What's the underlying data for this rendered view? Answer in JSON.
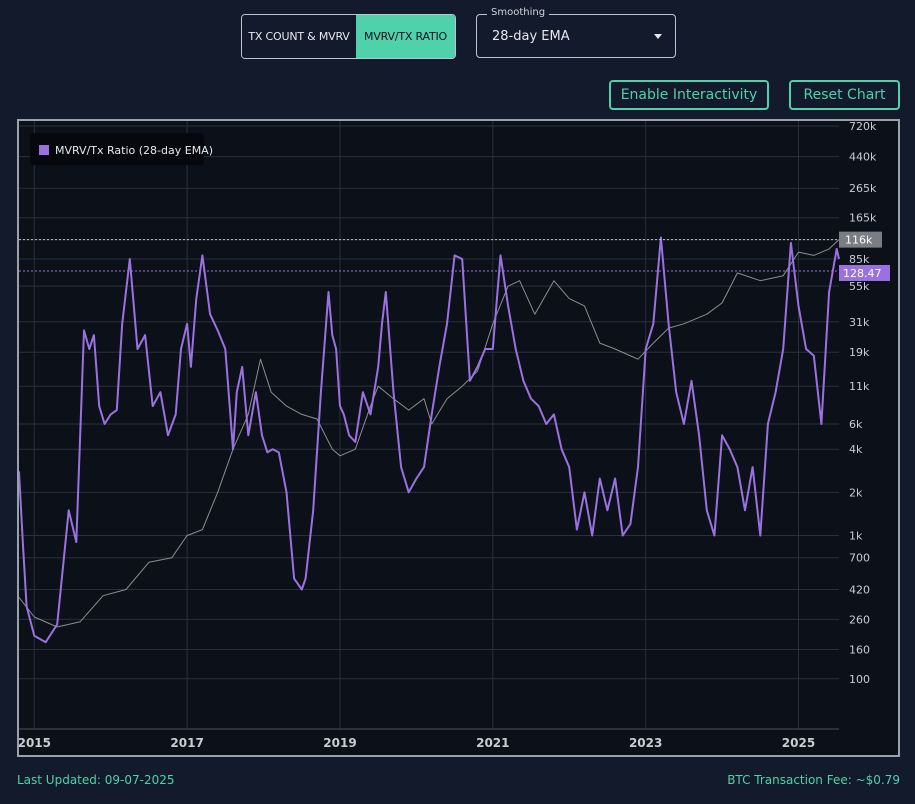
{
  "tabs": [
    {
      "label": "TX COUNT & MVRV",
      "active": false
    },
    {
      "label": "MVRV/TX RATIO",
      "active": true
    }
  ],
  "smoothing": {
    "label": "Smoothing",
    "value": "28-day EMA"
  },
  "buttons": {
    "interactivity": "Enable Interactivity",
    "reset": "Reset Chart"
  },
  "footer": {
    "updated": "Last Updated: 09-07-2025",
    "fee": "BTC Transaction Fee: ~$0.79"
  },
  "colors": {
    "accent": "#4fd1ac",
    "ratio": "#9a72e0",
    "price": "#8d8d8d",
    "background": "#0c1019"
  },
  "chart_data": {
    "type": "line",
    "scale": "log",
    "legend": {
      "position": "top-left",
      "entries": [
        "MVRV/Tx Ratio (28-day EMA)"
      ]
    },
    "grid": true,
    "x_ticks": [
      "2015",
      "2017",
      "2019",
      "2021",
      "2023",
      "2025"
    ],
    "y_ticks": [
      "720k",
      "440k",
      "265k",
      "165k",
      "116k",
      "85k",
      "55k",
      "31k",
      "19k",
      "11k",
      "6k",
      "4k",
      "2k",
      "1k",
      "700",
      "420",
      "260",
      "160",
      "100"
    ],
    "ylim": [
      70,
      720000
    ],
    "xlim": [
      2014.8,
      2025.53
    ],
    "last_values": {
      "price": "116k",
      "ratio": "128.47"
    },
    "series": [
      {
        "name": "MVRV/Tx Ratio (28-day EMA)",
        "x": [
          2014.8,
          2014.85,
          2014.9,
          2015.0,
          2015.15,
          2015.3,
          2015.45,
          2015.55,
          2015.65,
          2015.72,
          2015.78,
          2015.85,
          2015.92,
          2016.0,
          2016.08,
          2016.15,
          2016.25,
          2016.35,
          2016.45,
          2016.55,
          2016.65,
          2016.75,
          2016.85,
          2016.92,
          2017.0,
          2017.05,
          2017.12,
          2017.2,
          2017.3,
          2017.4,
          2017.5,
          2017.6,
          2017.65,
          2017.72,
          2017.8,
          2017.9,
          2017.98,
          2018.05,
          2018.12,
          2018.2,
          2018.3,
          2018.4,
          2018.5,
          2018.55,
          2018.65,
          2018.75,
          2018.85,
          2018.9,
          2018.95,
          2019.0,
          2019.05,
          2019.12,
          2019.2,
          2019.3,
          2019.4,
          2019.5,
          2019.55,
          2019.6,
          2019.7,
          2019.8,
          2019.9,
          2020.0,
          2020.1,
          2020.2,
          2020.3,
          2020.4,
          2020.5,
          2020.6,
          2020.7,
          2020.8,
          2020.9,
          2021.0,
          2021.1,
          2021.2,
          2021.3,
          2021.4,
          2021.5,
          2021.6,
          2021.7,
          2021.8,
          2021.9,
          2022.0,
          2022.1,
          2022.2,
          2022.3,
          2022.4,
          2022.5,
          2022.6,
          2022.7,
          2022.8,
          2022.9,
          2023.0,
          2023.1,
          2023.2,
          2023.3,
          2023.4,
          2023.5,
          2023.6,
          2023.7,
          2023.8,
          2023.9,
          2024.0,
          2024.1,
          2024.2,
          2024.3,
          2024.4,
          2024.5,
          2024.6,
          2024.7,
          2024.8,
          2024.9,
          2025.0,
          2025.1,
          2025.2,
          2025.3,
          2025.4,
          2025.5,
          2025.53
        ],
        "y": [
          2800,
          900,
          320,
          200,
          180,
          240,
          1500,
          900,
          27000,
          20000,
          25000,
          8000,
          6000,
          7000,
          7500,
          30000,
          85000,
          20000,
          25000,
          8000,
          10000,
          5000,
          7000,
          20000,
          30000,
          15000,
          45000,
          90000,
          35000,
          27000,
          20000,
          4000,
          10000,
          15000,
          5000,
          10000,
          5000,
          3800,
          4000,
          3800,
          2000,
          500,
          420,
          500,
          1500,
          10000,
          50000,
          25000,
          20000,
          8000,
          7000,
          5000,
          4500,
          10000,
          7000,
          15000,
          30000,
          50000,
          10000,
          3000,
          2000,
          2500,
          3000,
          7000,
          15000,
          30000,
          90000,
          85000,
          12000,
          15000,
          20000,
          20000,
          90000,
          40000,
          20000,
          12000,
          9000,
          8000,
          6000,
          7000,
          4000,
          3000,
          1100,
          2000,
          1000,
          2500,
          1500,
          2500,
          1000,
          1200,
          3000,
          20000,
          30000,
          120000,
          30000,
          10000,
          6000,
          12000,
          5000,
          1500,
          1000,
          5000,
          4000,
          3000,
          1500,
          3000,
          1000,
          6000,
          10000,
          20000,
          110000,
          40000,
          20000,
          18000,
          6000,
          50000,
          100000,
          128.47
        ]
      },
      {
        "name": "",
        "x": [
          2014.8,
          2015.0,
          2015.3,
          2015.6,
          2015.9,
          2016.2,
          2016.5,
          2016.8,
          2017.0,
          2017.2,
          2017.4,
          2017.6,
          2017.8,
          2017.96,
          2018.1,
          2018.3,
          2018.5,
          2018.7,
          2018.9,
          2019.0,
          2019.2,
          2019.4,
          2019.5,
          2019.7,
          2019.9,
          2020.1,
          2020.2,
          2020.4,
          2020.6,
          2020.8,
          2021.0,
          2021.2,
          2021.35,
          2021.55,
          2021.8,
          2022.0,
          2022.2,
          2022.4,
          2022.6,
          2022.9,
          2023.1,
          2023.3,
          2023.5,
          2023.8,
          2024.0,
          2024.2,
          2024.5,
          2024.8,
          2025.0,
          2025.2,
          2025.4,
          2025.53
        ],
        "y": [
          370,
          270,
          230,
          250,
          380,
          420,
          650,
          700,
          1000,
          1100,
          2000,
          4000,
          7000,
          17000,
          10000,
          8000,
          7000,
          6500,
          4000,
          3600,
          4000,
          8000,
          11000,
          9000,
          7500,
          9000,
          6000,
          9000,
          11000,
          14000,
          30000,
          55000,
          60000,
          35000,
          60000,
          45000,
          40000,
          22000,
          20000,
          17000,
          22000,
          28000,
          30000,
          35000,
          42000,
          68000,
          60000,
          65000,
          95000,
          90000,
          100000,
          116000
        ]
      }
    ]
  }
}
